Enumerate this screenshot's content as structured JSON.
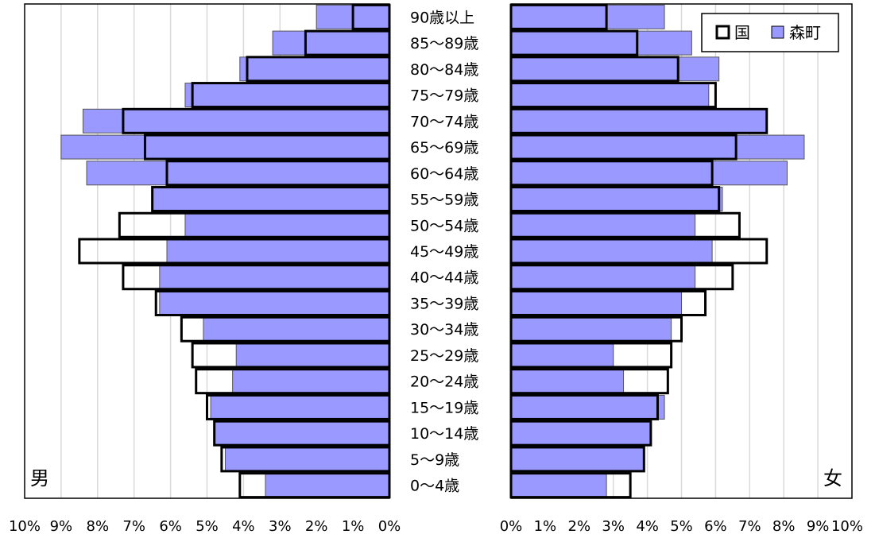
{
  "chart_data": {
    "type": "population-pyramid (horizontal bar)",
    "legend": [
      {
        "name": "国",
        "style": "outline",
        "color": "#000000"
      },
      {
        "name": "森町",
        "style": "filled",
        "color": "#9999ff"
      }
    ],
    "legend_position": "top-right",
    "left_label": "男",
    "right_label": "女",
    "x_range": [
      0,
      10
    ],
    "x_ticks_left": [
      "10%",
      "9%",
      "8%",
      "7%",
      "6%",
      "5%",
      "4%",
      "3%",
      "2%",
      "1%",
      "0%"
    ],
    "x_ticks_right": [
      "0%",
      "1%",
      "2%",
      "3%",
      "4%",
      "5%",
      "6%",
      "7%",
      "8%",
      "9%",
      "10%"
    ],
    "grid": true,
    "age_groups": [
      "90歳以上",
      "85～89歳",
      "80～84歳",
      "75～79歳",
      "70～74歳",
      "65～69歳",
      "60～64歳",
      "55～59歳",
      "50～54歳",
      "45～49歳",
      "40～44歳",
      "35～39歳",
      "30～34歳",
      "25～29歳",
      "20～24歳",
      "15～19歳",
      "10～14歳",
      "5～9歳",
      "0～4歳"
    ],
    "series": [
      {
        "name": "森町",
        "side": "男",
        "values": [
          2.0,
          3.2,
          4.1,
          5.6,
          8.4,
          9.0,
          8.3,
          6.5,
          5.6,
          6.1,
          6.3,
          6.3,
          5.1,
          4.2,
          4.3,
          4.9,
          4.8,
          4.5,
          3.4
        ]
      },
      {
        "name": "国",
        "side": "男",
        "values": [
          1.0,
          2.3,
          3.9,
          5.4,
          7.3,
          6.7,
          6.1,
          6.5,
          7.4,
          8.5,
          7.3,
          6.4,
          5.7,
          5.4,
          5.3,
          5.0,
          4.8,
          4.6,
          4.1
        ]
      },
      {
        "name": "森町",
        "side": "女",
        "values": [
          4.5,
          5.3,
          6.1,
          5.8,
          7.5,
          8.6,
          8.1,
          6.2,
          5.4,
          5.9,
          5.4,
          5.0,
          4.7,
          3.0,
          3.3,
          4.5,
          4.1,
          3.9,
          2.8
        ]
      },
      {
        "name": "国",
        "side": "女",
        "values": [
          2.8,
          3.7,
          4.9,
          6.0,
          7.5,
          6.6,
          5.9,
          6.1,
          6.7,
          7.5,
          6.5,
          5.7,
          5.0,
          4.7,
          4.6,
          4.3,
          4.1,
          3.9,
          3.5
        ]
      }
    ]
  }
}
